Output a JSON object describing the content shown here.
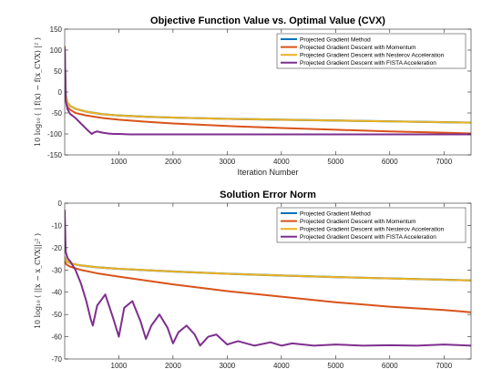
{
  "chart_data": [
    {
      "type": "line",
      "title": "Objective Function Value vs. Optimal Value (CVX)",
      "xlabel": "Iteration Number",
      "ylabel": "10 log₁₀ ( | f(x) − f(x_CVX) |² )",
      "xlim": [
        1,
        7500
      ],
      "ylim": [
        -150,
        150
      ],
      "xticks": [
        1000,
        2000,
        3000,
        4000,
        5000,
        6000,
        7000
      ],
      "yticks": [
        -150,
        -100,
        -50,
        0,
        50,
        100,
        150
      ],
      "grid": false,
      "legend": "top-right",
      "series": [
        {
          "name": "Projected Gradient Method",
          "color": "#0072bd",
          "x": [
            1,
            20,
            50,
            100,
            200,
            400,
            700,
            1000,
            1500,
            2000,
            3000,
            4000,
            5000,
            6000,
            7000,
            7500
          ],
          "y": [
            100,
            -5,
            -25,
            -33,
            -40,
            -47,
            -53,
            -56,
            -59,
            -61,
            -64,
            -66,
            -68,
            -70,
            -72,
            -73
          ]
        },
        {
          "name": "Projected Gradient Descent with Momentum",
          "color": "#d95319",
          "x": [
            1,
            20,
            50,
            100,
            200,
            400,
            700,
            1000,
            1500,
            2000,
            3000,
            4000,
            5000,
            6000,
            7000,
            7500
          ],
          "y": [
            110,
            -10,
            -35,
            -42,
            -50,
            -56,
            -62,
            -66,
            -71,
            -75,
            -81,
            -86,
            -90,
            -94,
            -97,
            -99
          ]
        },
        {
          "name": "Projected Gradient Descent with Nesterov Acceleration",
          "color": "#edb120",
          "x": [
            1,
            20,
            50,
            100,
            200,
            400,
            700,
            1000,
            1500,
            2000,
            3000,
            4000,
            5000,
            6000,
            7000,
            7500
          ],
          "y": [
            100,
            -5,
            -25,
            -33,
            -40,
            -47,
            -53,
            -56,
            -59,
            -61,
            -64,
            -66,
            -68,
            -70,
            -72,
            -73
          ]
        },
        {
          "name": "Projected Gradient Descent with FISTA Acceleration",
          "color": "#7e2f8e",
          "x": [
            1,
            20,
            50,
            100,
            200,
            300,
            400,
            500,
            550,
            600,
            700,
            800,
            900,
            1000,
            1200,
            1500,
            2000,
            3000,
            4000,
            5000,
            6000,
            7000,
            7500
          ],
          "y": [
            105,
            -20,
            -40,
            -52,
            -62,
            -75,
            -88,
            -100,
            -96,
            -94,
            -97,
            -99,
            -100,
            -100,
            -101,
            -101,
            -101,
            -101,
            -101,
            -101,
            -101,
            -101,
            -101
          ]
        }
      ]
    },
    {
      "type": "line",
      "title": "Solution Error Norm",
      "xlabel": "Iteration Number",
      "ylabel": "10 log₁₀ ( ||x − x_CVX||₂² )",
      "xlim": [
        1,
        7500
      ],
      "ylim": [
        -70,
        0
      ],
      "xticks": [
        1000,
        2000,
        3000,
        4000,
        5000,
        6000,
        7000
      ],
      "yticks": [
        -70,
        -60,
        -50,
        -40,
        -30,
        -20,
        -10,
        0
      ],
      "grid": false,
      "legend": "top-right",
      "series": [
        {
          "name": "Projected Gradient Method",
          "color": "#0072bd",
          "x": [
            1,
            30,
            100,
            300,
            600,
            1000,
            2000,
            3000,
            4000,
            5000,
            6000,
            7000,
            7500
          ],
          "y": [
            -24,
            -26,
            -27,
            -28,
            -28.8,
            -29.5,
            -30.7,
            -31.7,
            -32.5,
            -33.2,
            -33.8,
            -34.4,
            -34.7
          ]
        },
        {
          "name": "Projected Gradient Descent with Momentum",
          "color": "#d95319",
          "x": [
            1,
            30,
            100,
            300,
            600,
            1000,
            2000,
            3000,
            4000,
            5000,
            6000,
            7000,
            7500
          ],
          "y": [
            -26,
            -27.5,
            -28.5,
            -30,
            -31.5,
            -33,
            -36.5,
            -39.5,
            -42,
            -44.5,
            -46.5,
            -48,
            -49
          ]
        },
        {
          "name": "Projected Gradient Descent with Nesterov Acceleration",
          "color": "#edb120",
          "x": [
            1,
            30,
            100,
            300,
            600,
            1000,
            2000,
            3000,
            4000,
            5000,
            6000,
            7000,
            7500
          ],
          "y": [
            -24,
            -26,
            -27,
            -28,
            -28.8,
            -29.5,
            -30.7,
            -31.7,
            -32.5,
            -33.2,
            -33.8,
            -34.4,
            -34.7
          ]
        },
        {
          "name": "Projected Gradient Descent with FISTA Acceleration",
          "color": "#7e2f8e",
          "x": [
            1,
            20,
            60,
            100,
            150,
            200,
            300,
            400,
            480,
            520,
            600,
            750,
            900,
            1000,
            1100,
            1250,
            1400,
            1500,
            1600,
            1750,
            1900,
            2000,
            2100,
            2250,
            2400,
            2500,
            2650,
            2800,
            3000,
            3200,
            3500,
            3800,
            4000,
            4200,
            4600,
            5000,
            5500,
            6000,
            6500,
            7000,
            7500
          ],
          "y": [
            -3,
            -22,
            -25,
            -26,
            -28,
            -30,
            -36,
            -44,
            -52,
            -55,
            -46,
            -41,
            -52,
            -60,
            -47,
            -44,
            -53,
            -61,
            -55,
            -50,
            -56,
            -63,
            -58,
            -55,
            -59,
            -64,
            -60,
            -59,
            -63.5,
            -62,
            -64,
            -62.5,
            -64,
            -63,
            -64,
            -63.5,
            -64,
            -63.8,
            -64,
            -63.5,
            -64
          ]
        }
      ]
    }
  ]
}
